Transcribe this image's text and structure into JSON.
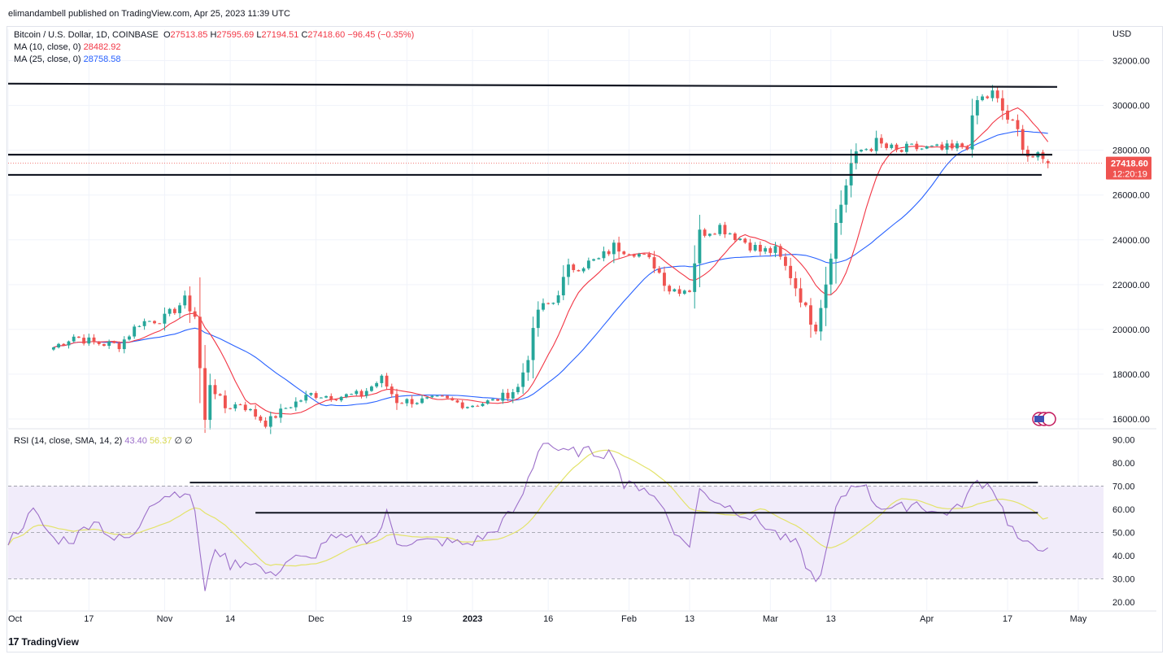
{
  "publisher": "elimandambell published on TradingView.com, Apr 25, 2023 11:39 UTC",
  "footer_brand": "TradingView",
  "colors": {
    "up": "#26a69a",
    "down": "#ef5350",
    "ma10": "#f23645",
    "ma25": "#2962ff",
    "rsi": "#9c6fc9",
    "rsi_sma": "#e3e36a",
    "level": "#131722",
    "grid": "#f0f3fa",
    "band": "#f1ecfa"
  },
  "legend": {
    "symbol": "Bitcoin / U.S. Dollar, 1D, COINBASE",
    "ohlc": {
      "o_label": "O",
      "o": "27513.85",
      "h_label": "H",
      "h": "27595.69",
      "l_label": "L",
      "l": "27194.51",
      "c_label": "C",
      "c": "27418.60",
      "chg": "−96.45 (−0.35%)"
    },
    "ma10_label": "MA (10, close, 0)",
    "ma10_value": "28482.92",
    "ma25_label": "MA (25, close, 0)",
    "ma25_value": "28758.58",
    "rsi_label": "RSI (14, close, SMA, 14, 2)",
    "rsi_value": "43.40",
    "rsi_sma_value": "56.37",
    "rsi_extra": "∅ ∅"
  },
  "chart_data": [
    {
      "type": "candlestick",
      "currency": "USD",
      "price_axis_ticks": [
        "32000.00",
        "30000.00",
        "28000.00",
        "26000.00",
        "24000.00",
        "22000.00",
        "20000.00",
        "18000.00",
        "16000.00"
      ],
      "ylim": [
        15600,
        33400
      ],
      "x_axis_ticks": [
        "Oct",
        "17",
        "Nov",
        "14",
        "Dec",
        "19",
        "2023",
        "16",
        "Feb",
        "13",
        "Mar",
        "13",
        "Apr",
        "17",
        "May"
      ],
      "last_price_label": "27418.60",
      "countdown_label": "12:20:19",
      "horizontal_levels": [
        30900,
        27800,
        26900
      ],
      "anchors_close": [
        [
          "2022-10-10",
          19200
        ],
        [
          "2022-10-14",
          19700
        ],
        [
          "2022-10-18",
          19400
        ],
        [
          "2022-10-23",
          19300
        ],
        [
          "2022-10-27",
          20300
        ],
        [
          "2022-11-01",
          20500
        ],
        [
          "2022-11-05",
          21300
        ],
        [
          "2022-11-07",
          20600
        ],
        [
          "2022-11-09",
          15900
        ],
        [
          "2022-11-10",
          17600
        ],
        [
          "2022-11-13",
          16500
        ],
        [
          "2022-11-16",
          16700
        ],
        [
          "2022-11-21",
          15800
        ],
        [
          "2022-11-25",
          16500
        ],
        [
          "2022-11-30",
          17100
        ],
        [
          "2022-12-05",
          17000
        ],
        [
          "2022-12-10",
          17100
        ],
        [
          "2022-12-14",
          17800
        ],
        [
          "2022-12-17",
          16800
        ],
        [
          "2022-12-21",
          16800
        ],
        [
          "2022-12-26",
          16900
        ],
        [
          "2022-12-31",
          16600
        ],
        [
          "2023-01-05",
          16800
        ],
        [
          "2023-01-08",
          17100
        ],
        [
          "2023-01-10",
          17400
        ],
        [
          "2023-01-12",
          18800
        ],
        [
          "2023-01-14",
          20900
        ],
        [
          "2023-01-17",
          21200
        ],
        [
          "2023-01-20",
          22700
        ],
        [
          "2023-01-26",
          23100
        ],
        [
          "2023-01-29",
          23700
        ],
        [
          "2023-02-02",
          23500
        ],
        [
          "2023-02-06",
          22900
        ],
        [
          "2023-02-09",
          21800
        ],
        [
          "2023-02-13",
          21800
        ],
        [
          "2023-02-15",
          24300
        ],
        [
          "2023-02-19",
          24600
        ],
        [
          "2023-02-22",
          24200
        ],
        [
          "2023-02-27",
          23500
        ],
        [
          "2023-03-02",
          23500
        ],
        [
          "2023-03-05",
          22400
        ],
        [
          "2023-03-09",
          20400
        ],
        [
          "2023-03-10",
          20100
        ],
        [
          "2023-03-12",
          22100
        ],
        [
          "2023-03-14",
          24700
        ],
        [
          "2023-03-17",
          27400
        ],
        [
          "2023-03-19",
          28000
        ],
        [
          "2023-03-22",
          28300
        ],
        [
          "2023-03-26",
          27900
        ],
        [
          "2023-03-30",
          28100
        ],
        [
          "2023-04-03",
          28000
        ],
        [
          "2023-04-06",
          28000
        ],
        [
          "2023-04-09",
          28300
        ],
        [
          "2023-04-11",
          30200
        ],
        [
          "2023-04-14",
          30500
        ],
        [
          "2023-04-17",
          29400
        ],
        [
          "2023-04-19",
          28800
        ],
        [
          "2023-04-21",
          27800
        ],
        [
          "2023-04-25",
          27418.6
        ]
      ],
      "series": [
        {
          "name": "MA (10, close, 0)",
          "last": 28482.92
        },
        {
          "name": "MA (25, close, 0)",
          "last": 28758.58
        }
      ],
      "x_range": [
        "2022-10-01",
        "2023-05-06"
      ]
    },
    {
      "type": "line",
      "pane": "RSI",
      "axis_ticks": [
        "90.00",
        "80.00",
        "70.00",
        "60.00",
        "50.00",
        "40.00",
        "30.00",
        "20.00"
      ],
      "ylim": [
        16.5,
        94
      ],
      "band": [
        30,
        70
      ],
      "midline": 50,
      "trendlines": [
        {
          "from": [
            "2022-11-06",
            71.5
          ],
          "to": [
            "2023-04-23",
            71.5
          ]
        },
        {
          "from": [
            "2022-11-19",
            58.5
          ],
          "to": [
            "2023-04-23",
            58.5
          ]
        }
      ],
      "anchors_rsi": [
        [
          "2022-10-01",
          46
        ],
        [
          "2022-10-06",
          59
        ],
        [
          "2022-10-10",
          47
        ],
        [
          "2022-10-14",
          47
        ],
        [
          "2022-10-18",
          56
        ],
        [
          "2022-10-22",
          47
        ],
        [
          "2022-10-26",
          48
        ],
        [
          "2022-10-29",
          63
        ],
        [
          "2022-11-01",
          66
        ],
        [
          "2022-11-05",
          68
        ],
        [
          "2022-11-07",
          60
        ],
        [
          "2022-11-09",
          24
        ],
        [
          "2022-11-11",
          44
        ],
        [
          "2022-11-14",
          36
        ],
        [
          "2022-11-18",
          38
        ],
        [
          "2022-11-22",
          31
        ],
        [
          "2022-11-26",
          39
        ],
        [
          "2022-11-30",
          38
        ],
        [
          "2022-12-03",
          47
        ],
        [
          "2022-12-08",
          47
        ],
        [
          "2022-12-13",
          48
        ],
        [
          "2022-12-15",
          58
        ],
        [
          "2022-12-17",
          46
        ],
        [
          "2022-12-21",
          46
        ],
        [
          "2022-12-26",
          46
        ],
        [
          "2022-12-31",
          45
        ],
        [
          "2023-01-05",
          50
        ],
        [
          "2023-01-08",
          57
        ],
        [
          "2023-01-10",
          61
        ],
        [
          "2023-01-14",
          85
        ],
        [
          "2023-01-15",
          90
        ],
        [
          "2023-01-19",
          84
        ],
        [
          "2023-01-22",
          85
        ],
        [
          "2023-01-29",
          84
        ],
        [
          "2023-01-31",
          70
        ],
        [
          "2023-02-04",
          70
        ],
        [
          "2023-02-08",
          60
        ],
        [
          "2023-02-11",
          47
        ],
        [
          "2023-02-13",
          45
        ],
        [
          "2023-02-15",
          68
        ],
        [
          "2023-02-19",
          63
        ],
        [
          "2023-02-23",
          59
        ],
        [
          "2023-02-28",
          53
        ],
        [
          "2023-03-03",
          48
        ],
        [
          "2023-03-06",
          45
        ],
        [
          "2023-03-10",
          28
        ],
        [
          "2023-03-12",
          40
        ],
        [
          "2023-03-14",
          60
        ],
        [
          "2023-03-17",
          70
        ],
        [
          "2023-03-19",
          72
        ],
        [
          "2023-03-22",
          62
        ],
        [
          "2023-03-26",
          60
        ],
        [
          "2023-03-30",
          63
        ],
        [
          "2023-04-03",
          58
        ],
        [
          "2023-04-07",
          60
        ],
        [
          "2023-04-11",
          72
        ],
        [
          "2023-04-14",
          70
        ],
        [
          "2023-04-17",
          55
        ],
        [
          "2023-04-20",
          44
        ],
        [
          "2023-04-22",
          45
        ],
        [
          "2023-04-25",
          43.4
        ]
      ],
      "series": [
        {
          "name": "RSI (14, close, SMA, 14, 2)",
          "last": 43.4
        },
        {
          "name": "SMA",
          "last": 56.37
        }
      ]
    }
  ]
}
